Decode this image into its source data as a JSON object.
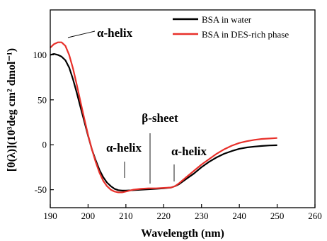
{
  "chart_data": {
    "type": "line",
    "xlabel": "Wavelength (nm)",
    "ylabel": "[θ(λ)](10³deg cm² dmol⁻¹)",
    "xlim": [
      190,
      260
    ],
    "ylim": [
      -70,
      150
    ],
    "xticks": [
      190,
      200,
      210,
      220,
      230,
      240,
      250,
      260
    ],
    "yticks": [
      -50,
      0,
      50,
      100
    ],
    "legend_position": "top-right",
    "series": [
      {
        "name": "BSA in water",
        "color": "#000000",
        "points": [
          [
            190,
            100
          ],
          [
            191,
            101
          ],
          [
            192,
            100
          ],
          [
            193,
            98
          ],
          [
            194,
            94
          ],
          [
            195,
            86
          ],
          [
            196,
            73
          ],
          [
            197,
            58
          ],
          [
            198,
            42
          ],
          [
            199,
            26
          ],
          [
            200,
            10
          ],
          [
            201,
            -5
          ],
          [
            202,
            -17
          ],
          [
            203,
            -28
          ],
          [
            204,
            -36
          ],
          [
            205,
            -42
          ],
          [
            206,
            -46
          ],
          [
            207,
            -49
          ],
          [
            208,
            -50.5
          ],
          [
            209,
            -51
          ],
          [
            210,
            -51
          ],
          [
            212,
            -50.5
          ],
          [
            214,
            -50
          ],
          [
            216,
            -49.5
          ],
          [
            218,
            -49
          ],
          [
            220,
            -48.5
          ],
          [
            222,
            -47.5
          ],
          [
            223,
            -46
          ],
          [
            224,
            -44
          ],
          [
            226,
            -38
          ],
          [
            228,
            -32
          ],
          [
            230,
            -25
          ],
          [
            232,
            -19
          ],
          [
            234,
            -14
          ],
          [
            236,
            -10
          ],
          [
            238,
            -7
          ],
          [
            240,
            -4.5
          ],
          [
            242,
            -3
          ],
          [
            244,
            -2
          ],
          [
            246,
            -1.3
          ],
          [
            248,
            -0.8
          ],
          [
            250,
            -0.5
          ]
        ]
      },
      {
        "name": "BSA in DES-rich phase",
        "color": "#e8302a",
        "points": [
          [
            190,
            108
          ],
          [
            191,
            112
          ],
          [
            192,
            114
          ],
          [
            193,
            114
          ],
          [
            194,
            110
          ],
          [
            195,
            100
          ],
          [
            196,
            85
          ],
          [
            197,
            67
          ],
          [
            198,
            48
          ],
          [
            199,
            29
          ],
          [
            200,
            11
          ],
          [
            201,
            -5
          ],
          [
            202,
            -19
          ],
          [
            203,
            -31
          ],
          [
            204,
            -40
          ],
          [
            205,
            -46
          ],
          [
            206,
            -50
          ],
          [
            207,
            -52
          ],
          [
            208,
            -53
          ],
          [
            209,
            -53
          ],
          [
            210,
            -52
          ],
          [
            212,
            -50
          ],
          [
            214,
            -49
          ],
          [
            216,
            -48.5
          ],
          [
            218,
            -48.5
          ],
          [
            220,
            -48
          ],
          [
            222,
            -47.5
          ],
          [
            223,
            -46
          ],
          [
            224,
            -43
          ],
          [
            226,
            -36
          ],
          [
            228,
            -29
          ],
          [
            230,
            -22
          ],
          [
            232,
            -16
          ],
          [
            234,
            -10
          ],
          [
            236,
            -5
          ],
          [
            238,
            -1
          ],
          [
            240,
            2
          ],
          [
            242,
            4
          ],
          [
            244,
            5.5
          ],
          [
            246,
            6.5
          ],
          [
            248,
            7
          ],
          [
            250,
            7.5
          ]
        ]
      }
    ],
    "annotations": [
      {
        "text": "α-helix",
        "target_x": 192.5,
        "target_y": 112
      },
      {
        "text": "α-helix",
        "target_x": 209.5,
        "target_y": -51
      },
      {
        "text": "β-sheet",
        "target_x": 215.8,
        "target_y": -50
      },
      {
        "text": "α-helix",
        "target_x": 222,
        "target_y": -48
      }
    ]
  }
}
